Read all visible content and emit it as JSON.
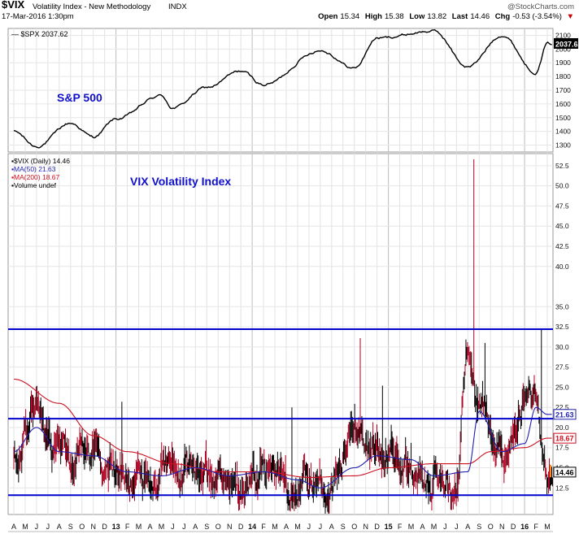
{
  "header": {
    "ticker": "$VIX",
    "name": "Volatility Index - New Methodology",
    "exchange": "INDX",
    "datetime": "17-Mar-2016 1:30pm",
    "brand": "@StockCharts.com",
    "quote": {
      "open_label": "Open",
      "open": "15.34",
      "high_label": "High",
      "high": "15.38",
      "low_label": "Low",
      "low": "13.82",
      "last_label": "Last",
      "last": "14.46",
      "chg_label": "Chg",
      "chg": "-0.53 (-3.54%)",
      "down_arrow": "▼"
    },
    "colors": {
      "negative": "#cc0000",
      "brand": "#555555"
    }
  },
  "chart_data": [
    {
      "type": "line",
      "panel": "upper",
      "legend": "$SPX 2037.62",
      "annotation": "S&P 500",
      "annotation_color": "#1010cc",
      "current_value_label": "2037.62",
      "ylim": [
        1250,
        2150
      ],
      "yticks": [
        1300,
        1400,
        1500,
        1600,
        1700,
        1800,
        1900,
        2000,
        2100
      ],
      "line_color": "#000000",
      "anchor_points": [
        {
          "x": "2012-04",
          "y": 1400
        },
        {
          "x": "2012-06",
          "y": 1290
        },
        {
          "x": "2012-09",
          "y": 1460
        },
        {
          "x": "2012-11",
          "y": 1360
        },
        {
          "x": "2013-01",
          "y": 1490
        },
        {
          "x": "2013-05",
          "y": 1660
        },
        {
          "x": "2013-06",
          "y": 1570
        },
        {
          "x": "2013-09",
          "y": 1720
        },
        {
          "x": "2013-12",
          "y": 1840
        },
        {
          "x": "2014-02",
          "y": 1740
        },
        {
          "x": "2014-07",
          "y": 1990
        },
        {
          "x": "2014-10",
          "y": 1860
        },
        {
          "x": "2014-12",
          "y": 2080
        },
        {
          "x": "2015-05",
          "y": 2130
        },
        {
          "x": "2015-08",
          "y": 1870
        },
        {
          "x": "2015-11",
          "y": 2100
        },
        {
          "x": "2016-02",
          "y": 1830
        },
        {
          "x": "2016-03",
          "y": 2037.62
        }
      ]
    },
    {
      "type": "bar",
      "panel": "lower",
      "style": "price bars (high/low) with moving averages",
      "legend": [
        {
          "label": "$VIX (Daily) 14.46",
          "color": "#000000"
        },
        {
          "label": "MA(50) 21.63",
          "color": "#1f1fb0"
        },
        {
          "label": "MA(200) 18.67",
          "color": "#cc1020"
        },
        {
          "label": "Volume undef",
          "color": "#000000"
        }
      ],
      "annotation": "VIX Volatility Index",
      "annotation_color": "#1010cc",
      "ylim": [
        9.2,
        54
      ],
      "yticks": [
        "12.5",
        "15.0",
        "17.5",
        "20.0",
        "22.5",
        "25.0",
        "27.5",
        "30.0",
        "32.5",
        "35.0",
        "40.0",
        "42.5",
        "45.0",
        "47.5",
        "50.0",
        "52.5"
      ],
      "tick_values": [
        12.5,
        15,
        17.5,
        20,
        22.5,
        25,
        27.5,
        30,
        32.5,
        35,
        40,
        42.5,
        45,
        47.5,
        50,
        52.5
      ],
      "current_value_labels": [
        {
          "label": "21.63",
          "value": 21.63,
          "color": "#1f1fb0"
        },
        {
          "label": "18.67",
          "value": 18.67,
          "color": "#cc1020"
        },
        {
          "label": "14.46",
          "value": 14.46,
          "color": "#000000"
        }
      ],
      "horizontal_lines": [
        {
          "value": 32.2,
          "color": "#0000cc"
        },
        {
          "value": 21.1,
          "color": "#0000cc"
        },
        {
          "value": 11.6,
          "color": "#0000cc"
        }
      ],
      "close_anchor_points": [
        {
          "x": "2012-04",
          "y": 17
        },
        {
          "x": "2012-06",
          "y": 22
        },
        {
          "x": "2012-08",
          "y": 16
        },
        {
          "x": "2012-11",
          "y": 16
        },
        {
          "x": "2013-01",
          "y": 15
        },
        {
          "x": "2013-04",
          "y": 13
        },
        {
          "x": "2013-06",
          "y": 16
        },
        {
          "x": "2013-09",
          "y": 14
        },
        {
          "x": "2013-12",
          "y": 13
        },
        {
          "x": "2014-02",
          "y": 15
        },
        {
          "x": "2014-05",
          "y": 12
        },
        {
          "x": "2014-07",
          "y": 11.5
        },
        {
          "x": "2014-10",
          "y": 20
        },
        {
          "x": "2014-12",
          "y": 17
        },
        {
          "x": "2015-02",
          "y": 15
        },
        {
          "x": "2015-05",
          "y": 13
        },
        {
          "x": "2015-07",
          "y": 13
        },
        {
          "x": "2015-08",
          "y": 28
        },
        {
          "x": "2015-09",
          "y": 23
        },
        {
          "x": "2015-11",
          "y": 16
        },
        {
          "x": "2016-01",
          "y": 23
        },
        {
          "x": "2016-02",
          "y": 24
        },
        {
          "x": "2016-03",
          "y": 14.46
        }
      ],
      "high_spikes": [
        {
          "x": "2013-01",
          "y": 23.2
        },
        {
          "x": "2014-04",
          "y": 22.5
        },
        {
          "x": "2014-10",
          "y": 31.1
        },
        {
          "x": "2014-12",
          "y": 25.2
        },
        {
          "x": "2015-08",
          "y": 53.3
        },
        {
          "x": "2015-09",
          "y": 30.5
        },
        {
          "x": "2016-02",
          "y": 32.1
        }
      ],
      "ma50_anchor_points": [
        {
          "x": "2012-04",
          "y": 17
        },
        {
          "x": "2012-06",
          "y": 20
        },
        {
          "x": "2012-08",
          "y": 17
        },
        {
          "x": "2012-11",
          "y": 16.5
        },
        {
          "x": "2013-02",
          "y": 14.5
        },
        {
          "x": "2013-05",
          "y": 14
        },
        {
          "x": "2013-08",
          "y": 15
        },
        {
          "x": "2013-11",
          "y": 14
        },
        {
          "x": "2014-02",
          "y": 14.5
        },
        {
          "x": "2014-05",
          "y": 13.5
        },
        {
          "x": "2014-07",
          "y": 12.5
        },
        {
          "x": "2014-10",
          "y": 15
        },
        {
          "x": "2014-12",
          "y": 16.5
        },
        {
          "x": "2015-03",
          "y": 16
        },
        {
          "x": "2015-05",
          "y": 14
        },
        {
          "x": "2015-08",
          "y": 14.5
        },
        {
          "x": "2015-09",
          "y": 22
        },
        {
          "x": "2015-11",
          "y": 17
        },
        {
          "x": "2016-01",
          "y": 18
        },
        {
          "x": "2016-02",
          "y": 22.5
        },
        {
          "x": "2016-03",
          "y": 21.63
        }
      ],
      "ma200_anchor_points": [
        {
          "x": "2012-04",
          "y": 26
        },
        {
          "x": "2012-08",
          "y": 23
        },
        {
          "x": "2012-11",
          "y": 19
        },
        {
          "x": "2013-02",
          "y": 17
        },
        {
          "x": "2013-06",
          "y": 15.5
        },
        {
          "x": "2013-10",
          "y": 14.5
        },
        {
          "x": "2014-02",
          "y": 14.5
        },
        {
          "x": "2014-06",
          "y": 13.8
        },
        {
          "x": "2014-10",
          "y": 14
        },
        {
          "x": "2015-01",
          "y": 15
        },
        {
          "x": "2015-05",
          "y": 15.5
        },
        {
          "x": "2015-08",
          "y": 15.5
        },
        {
          "x": "2015-10",
          "y": 17
        },
        {
          "x": "2016-01",
          "y": 17.5
        },
        {
          "x": "2016-03",
          "y": 18.67
        }
      ]
    }
  ],
  "x_axis": {
    "months": [
      "A",
      "M",
      "J",
      "J",
      "A",
      "S",
      "O",
      "N",
      "D",
      "13",
      "F",
      "M",
      "A",
      "M",
      "J",
      "J",
      "A",
      "S",
      "O",
      "N",
      "D",
      "14",
      "F",
      "M",
      "A",
      "M",
      "J",
      "J",
      "A",
      "S",
      "O",
      "N",
      "D",
      "15",
      "F",
      "M",
      "A",
      "M",
      "J",
      "J",
      "A",
      "S",
      "O",
      "N",
      "D",
      "16",
      "F",
      "M"
    ],
    "start": "2012-04",
    "bold_labels": [
      "13",
      "14",
      "15",
      "16"
    ]
  }
}
